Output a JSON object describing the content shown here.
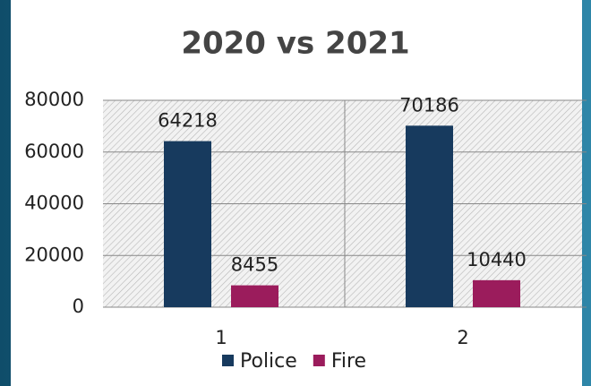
{
  "chart_data": {
    "type": "bar",
    "title": "2020 vs 2021",
    "categories": [
      "1",
      "2"
    ],
    "series": [
      {
        "name": "Police",
        "color": "#173a5e",
        "values": [
          64218,
          70186
        ]
      },
      {
        "name": "Fire",
        "color": "#9b1c5c",
        "values": [
          8455,
          10440
        ]
      }
    ],
    "ylim": [
      0,
      80000
    ],
    "yticks": [
      0,
      20000,
      40000,
      60000,
      80000
    ],
    "grid": true,
    "legend": "bottom"
  }
}
